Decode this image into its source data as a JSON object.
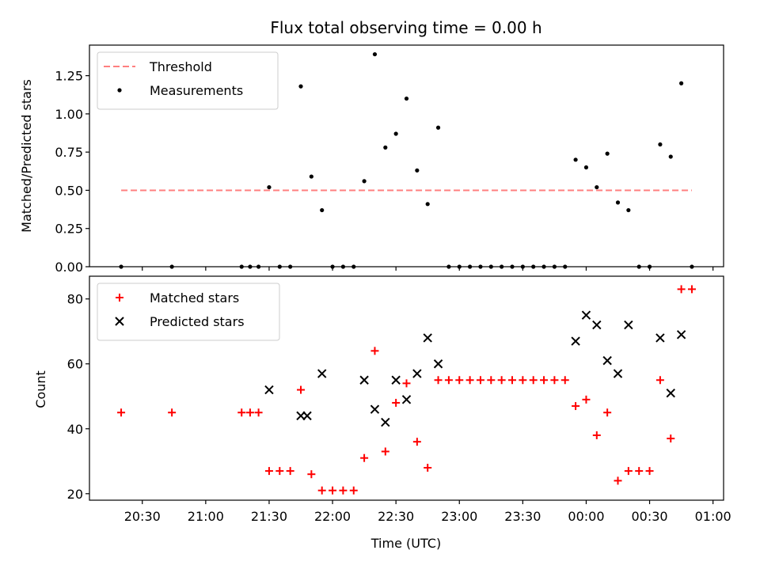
{
  "chart_data": [
    {
      "type": "scatter",
      "title": "Flux total observing time = 0.00 h",
      "xlabel": "",
      "ylabel": "Matched/Predicted stars",
      "ylim": [
        0,
        1.45
      ],
      "xlim_minutes": [
        1205,
        1505
      ],
      "yticks": [
        0.0,
        0.25,
        0.5,
        0.75,
        1.0,
        1.25
      ],
      "ytick_labels": [
        "0.00",
        "0.25",
        "0.50",
        "0.75",
        "1.00",
        "1.25"
      ],
      "legend_placement": "upper-left",
      "threshold": {
        "name": "Threshold",
        "color": "#ff7f7f",
        "value": 0.5,
        "x_range": [
          "20:20",
          "24:50"
        ]
      },
      "series": [
        {
          "name": "Measurements",
          "color": "#000000",
          "marker": "dot",
          "points": [
            [
              "20:20",
              0.0
            ],
            [
              "20:44",
              0.0
            ],
            [
              "21:17",
              0.0
            ],
            [
              "21:21",
              0.0
            ],
            [
              "21:25",
              0.0
            ],
            [
              "21:30",
              0.52
            ],
            [
              "21:35",
              0.0
            ],
            [
              "21:40",
              0.0
            ],
            [
              "21:45",
              1.18
            ],
            [
              "21:50",
              0.59
            ],
            [
              "21:55",
              0.37
            ],
            [
              "22:00",
              0.0
            ],
            [
              "22:05",
              0.0
            ],
            [
              "22:10",
              0.0
            ],
            [
              "22:15",
              0.56
            ],
            [
              "22:20",
              1.39
            ],
            [
              "22:25",
              0.78
            ],
            [
              "22:30",
              0.87
            ],
            [
              "22:35",
              1.1
            ],
            [
              "22:40",
              0.63
            ],
            [
              "22:45",
              0.41
            ],
            [
              "22:50",
              0.91
            ],
            [
              "22:55",
              0.0
            ],
            [
              "23:00",
              0.0
            ],
            [
              "23:05",
              0.0
            ],
            [
              "23:10",
              0.0
            ],
            [
              "23:15",
              0.0
            ],
            [
              "23:20",
              0.0
            ],
            [
              "23:25",
              0.0
            ],
            [
              "23:30",
              0.0
            ],
            [
              "23:35",
              0.0
            ],
            [
              "23:40",
              0.0
            ],
            [
              "23:45",
              0.0
            ],
            [
              "23:50",
              0.0
            ],
            [
              "23:55",
              0.7
            ],
            [
              "24:00",
              0.65
            ],
            [
              "24:05",
              0.52
            ],
            [
              "24:10",
              0.74
            ],
            [
              "24:15",
              0.42
            ],
            [
              "24:20",
              0.37
            ],
            [
              "24:25",
              0.0
            ],
            [
              "24:30",
              0.0
            ],
            [
              "24:35",
              0.8
            ],
            [
              "24:40",
              0.72
            ],
            [
              "24:45",
              1.2
            ],
            [
              "24:50",
              0.0
            ]
          ]
        }
      ]
    },
    {
      "type": "scatter",
      "title": "",
      "xlabel": "Time (UTC)",
      "ylabel": "Count",
      "ylim": [
        18,
        87
      ],
      "xlim_minutes": [
        1205,
        1505
      ],
      "yticks": [
        20,
        40,
        60,
        80
      ],
      "ytick_labels": [
        "20",
        "40",
        "60",
        "80"
      ],
      "xtick_labels": [
        "20:30",
        "21:00",
        "21:30",
        "22:00",
        "22:30",
        "23:00",
        "23:30",
        "00:00",
        "00:30",
        "01:00"
      ],
      "xtick_values": [
        "20:30",
        "21:00",
        "21:30",
        "22:00",
        "22:30",
        "23:00",
        "23:30",
        "24:00",
        "24:30",
        "25:00"
      ],
      "legend_placement": "upper-left",
      "series": [
        {
          "name": "Matched stars",
          "color": "#ff0000",
          "marker": "plus",
          "points": [
            [
              "20:20",
              45
            ],
            [
              "20:44",
              45
            ],
            [
              "21:17",
              45
            ],
            [
              "21:21",
              45
            ],
            [
              "21:25",
              45
            ],
            [
              "21:30",
              27
            ],
            [
              "21:35",
              27
            ],
            [
              "21:40",
              27
            ],
            [
              "21:45",
              52
            ],
            [
              "21:50",
              26
            ],
            [
              "21:55",
              21
            ],
            [
              "22:00",
              21
            ],
            [
              "22:05",
              21
            ],
            [
              "22:10",
              21
            ],
            [
              "22:15",
              31
            ],
            [
              "22:20",
              64
            ],
            [
              "22:25",
              33
            ],
            [
              "22:30",
              48
            ],
            [
              "22:35",
              54
            ],
            [
              "22:40",
              36
            ],
            [
              "22:45",
              28
            ],
            [
              "22:50",
              55
            ],
            [
              "22:55",
              55
            ],
            [
              "23:00",
              55
            ],
            [
              "23:05",
              55
            ],
            [
              "23:10",
              55
            ],
            [
              "23:15",
              55
            ],
            [
              "23:20",
              55
            ],
            [
              "23:25",
              55
            ],
            [
              "23:30",
              55
            ],
            [
              "23:35",
              55
            ],
            [
              "23:40",
              55
            ],
            [
              "23:45",
              55
            ],
            [
              "23:50",
              55
            ],
            [
              "23:55",
              47
            ],
            [
              "24:00",
              49
            ],
            [
              "24:05",
              38
            ],
            [
              "24:10",
              45
            ],
            [
              "24:15",
              24
            ],
            [
              "24:20",
              27
            ],
            [
              "24:25",
              27
            ],
            [
              "24:30",
              27
            ],
            [
              "24:35",
              55
            ],
            [
              "24:40",
              37
            ],
            [
              "24:45",
              83
            ],
            [
              "24:50",
              83
            ]
          ]
        },
        {
          "name": "Predicted stars",
          "color": "#000000",
          "marker": "x",
          "points": [
            [
              "21:30",
              52
            ],
            [
              "21:45",
              44
            ],
            [
              "21:48",
              44
            ],
            [
              "21:55",
              57
            ],
            [
              "22:15",
              55
            ],
            [
              "22:20",
              46
            ],
            [
              "22:25",
              42
            ],
            [
              "22:30",
              55
            ],
            [
              "22:35",
              49
            ],
            [
              "22:40",
              57
            ],
            [
              "22:45",
              68
            ],
            [
              "22:50",
              60
            ],
            [
              "23:55",
              67
            ],
            [
              "24:00",
              75
            ],
            [
              "24:05",
              72
            ],
            [
              "24:10",
              61
            ],
            [
              "24:15",
              57
            ],
            [
              "24:20",
              72
            ],
            [
              "24:35",
              68
            ],
            [
              "24:40",
              51
            ],
            [
              "24:45",
              69
            ]
          ]
        }
      ]
    }
  ]
}
